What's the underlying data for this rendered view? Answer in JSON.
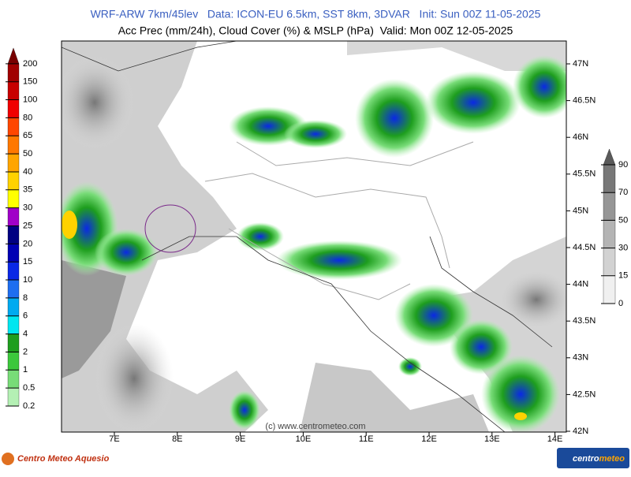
{
  "header": {
    "title": "WRF-ARW 7km/45lev   Data: ICON-EU 6.5km, SST 8km, 3DVAR   Init: Sun 00Z 11-05-2025",
    "subtitle": "Acc Prec (mm/24h), Cloud Cover (%) & MSLP (hPa)  Valid: Mon 00Z 12-05-2025"
  },
  "map": {
    "lon_ticks": [
      {
        "value": 7,
        "label": "7E"
      },
      {
        "value": 8,
        "label": "8E"
      },
      {
        "value": 9,
        "label": "9E"
      },
      {
        "value": 10,
        "label": "10E"
      },
      {
        "value": 11,
        "label": "11E"
      },
      {
        "value": 12,
        "label": "12E"
      },
      {
        "value": 13,
        "label": "13E"
      },
      {
        "value": 14,
        "label": "14E"
      }
    ],
    "lat_ticks": [
      {
        "value": 47,
        "label": "47N"
      },
      {
        "value": 46.5,
        "label": "46.5N"
      },
      {
        "value": 46,
        "label": "46N"
      },
      {
        "value": 45.5,
        "label": "45.5N"
      },
      {
        "value": 45,
        "label": "45N"
      },
      {
        "value": 44.5,
        "label": "44.5N"
      },
      {
        "value": 44,
        "label": "44N"
      },
      {
        "value": 43.5,
        "label": "43.5N"
      },
      {
        "value": 43,
        "label": "43N"
      },
      {
        "value": 42.5,
        "label": "42.5N"
      },
      {
        "value": 42,
        "label": "42N"
      }
    ],
    "watermark": "(c) www.centrometeo.com"
  },
  "precip_scale": {
    "levels": [
      0.2,
      0.5,
      1,
      2,
      4,
      6,
      8,
      10,
      15,
      20,
      25,
      30,
      35,
      40,
      50,
      65,
      80,
      100,
      150,
      200
    ],
    "colors": [
      "#b4f0b4",
      "#78dc78",
      "#3cc83c",
      "#1e9e1e",
      "#00e6f0",
      "#00aaf0",
      "#1e6ef0",
      "#0a28e6",
      "#0000b4",
      "#000082",
      "#a000c8",
      "#ffff00",
      "#ffd200",
      "#ffa500",
      "#ff7800",
      "#ff4600",
      "#f00000",
      "#c80000",
      "#a00000",
      "#780000"
    ]
  },
  "cloud_scale": {
    "levels": [
      0,
      15,
      30,
      50,
      70,
      90
    ],
    "colors": [
      "#f0f0f0",
      "#d2d2d2",
      "#b4b4b4",
      "#969696",
      "#787878",
      "#5a5a5a"
    ]
  },
  "footer": {
    "left_logo": "Centro Meteo Aquesio",
    "right_logo_a": "centro",
    "right_logo_b": "meteo"
  }
}
